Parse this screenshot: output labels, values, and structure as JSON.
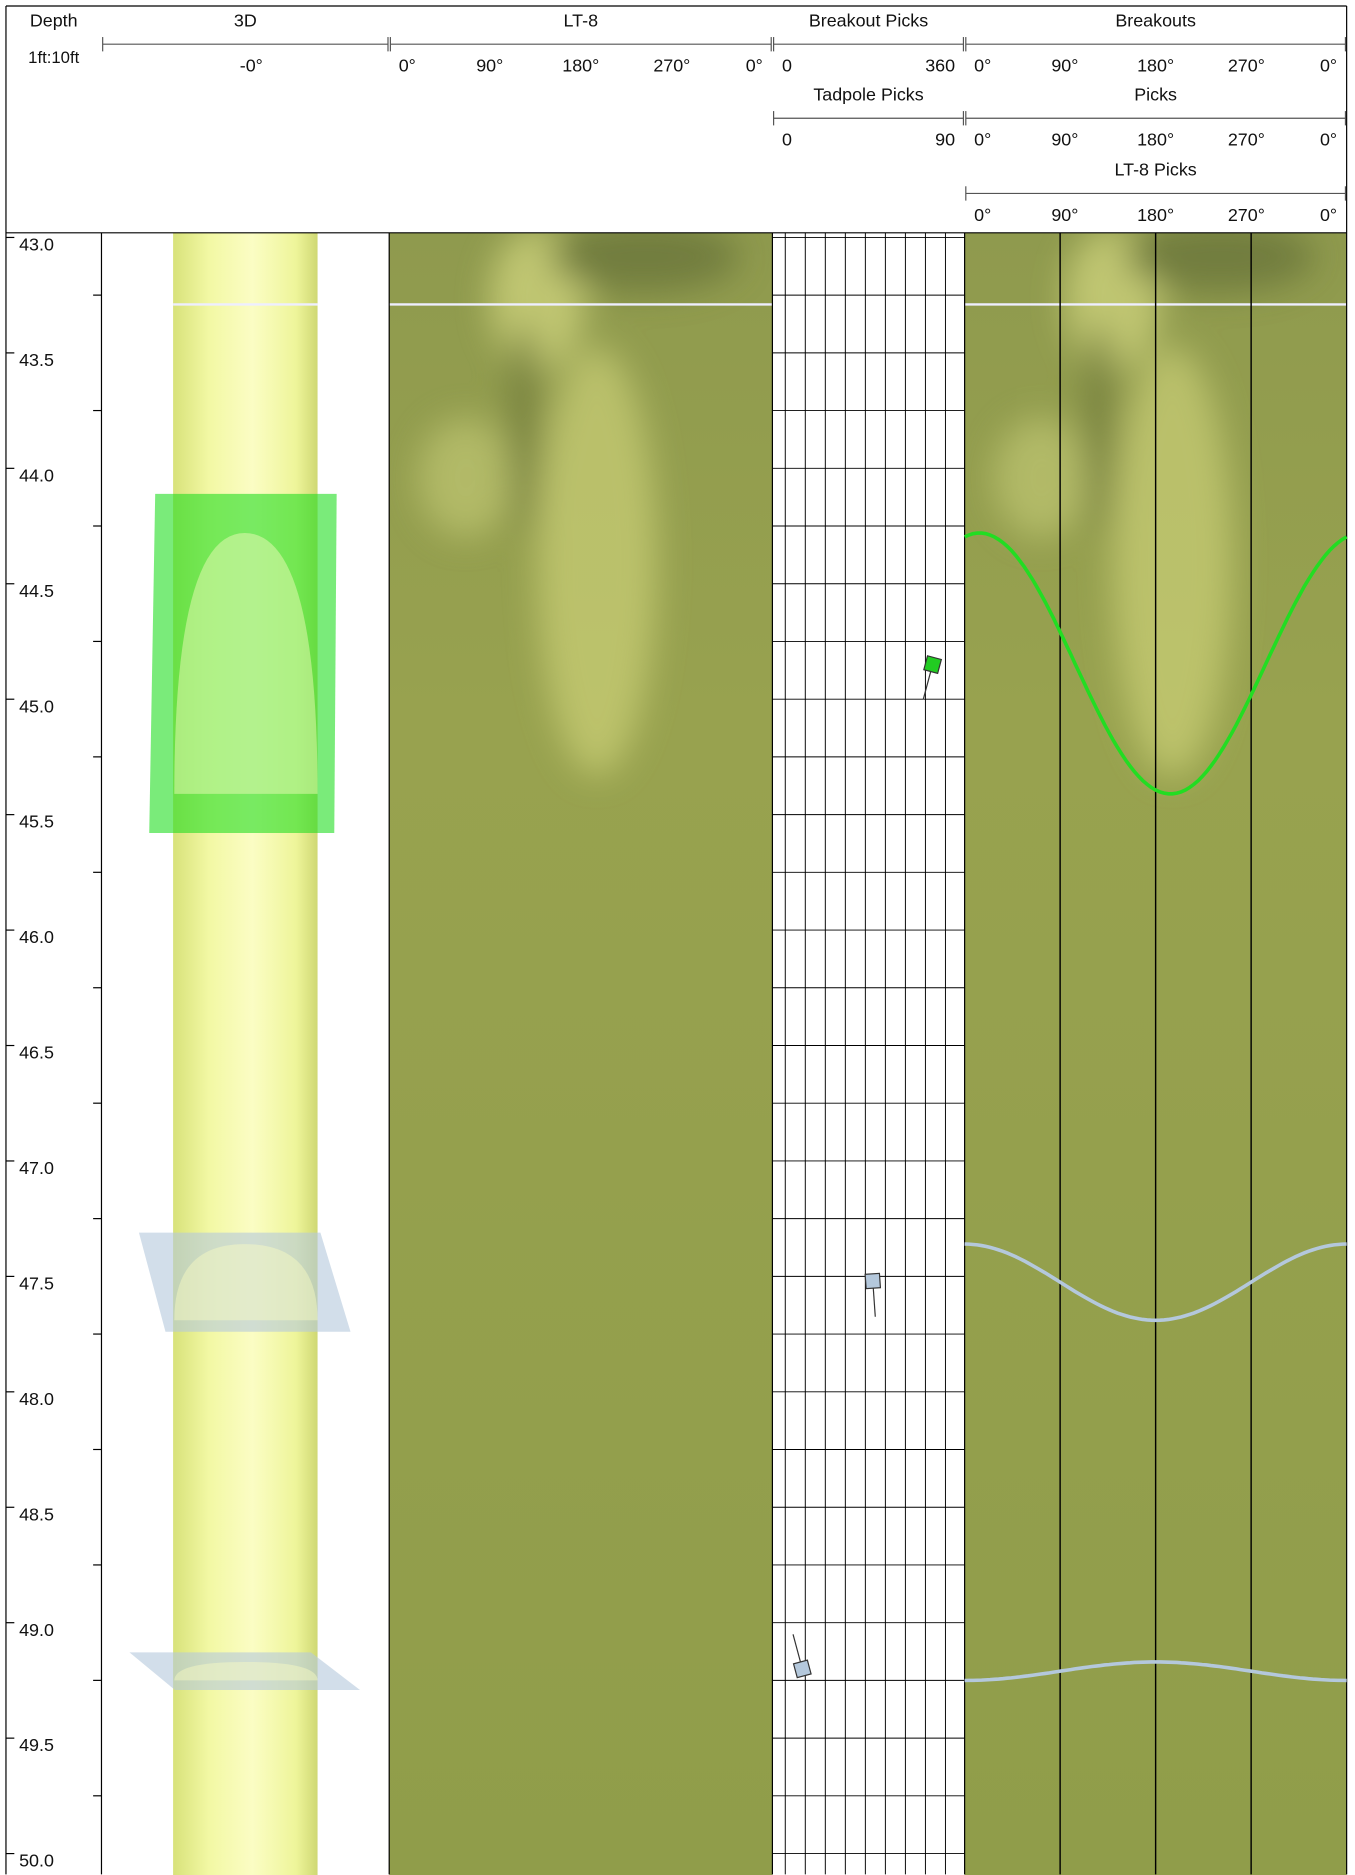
{
  "depth_track": {
    "title": "Depth",
    "scale_text": "1ft:10ft",
    "range": [
      42.98,
      50.09
    ],
    "ticks": [
      {
        "value": 43.0,
        "label": "43.0"
      },
      {
        "value": 43.5,
        "label": "43.5"
      },
      {
        "value": 44.0,
        "label": "44.0"
      },
      {
        "value": 44.5,
        "label": "44.5"
      },
      {
        "value": 45.0,
        "label": "45.0"
      },
      {
        "value": 45.5,
        "label": "45.5"
      },
      {
        "value": 46.0,
        "label": "46.0"
      },
      {
        "value": 46.5,
        "label": "46.5"
      },
      {
        "value": 47.0,
        "label": "47.0"
      },
      {
        "value": 47.5,
        "label": "47.5"
      },
      {
        "value": 48.0,
        "label": "48.0"
      },
      {
        "value": 48.5,
        "label": "48.5"
      },
      {
        "value": 49.0,
        "label": "49.0"
      },
      {
        "value": 49.5,
        "label": "49.5"
      },
      {
        "value": 50.0,
        "label": "50.0"
      }
    ]
  },
  "tracks": [
    {
      "scales": [
        {
          "title": "3D",
          "labels": [
            "-0°"
          ]
        }
      ]
    },
    {
      "scales": [
        {
          "title": "LT-8",
          "labels": [
            "0°",
            "90°",
            "180°",
            "270°",
            "0°"
          ]
        }
      ]
    },
    {
      "scales": [
        {
          "title": "Breakout Picks",
          "labels": [
            "0",
            "360"
          ]
        },
        {
          "title": "Tadpole Picks",
          "labels": [
            "0",
            "90"
          ]
        }
      ]
    },
    {
      "scales": [
        {
          "title": "Breakouts",
          "labels": [
            "0°",
            "90°",
            "180°",
            "270°",
            "0°"
          ]
        },
        {
          "title": "Picks",
          "labels": [
            "0°",
            "90°",
            "180°",
            "270°",
            "0°"
          ]
        },
        {
          "title": "LT-8 Picks",
          "labels": [
            "0°",
            "90°",
            "180°",
            "270°",
            "0°"
          ]
        }
      ]
    }
  ],
  "tadpoles": [
    {
      "depth": 44.85,
      "dip": 75,
      "azimuth": 195,
      "color": "#22cc22"
    },
    {
      "depth": 47.52,
      "dip": 47,
      "azimuth": 176,
      "color": "#b4c8dc"
    },
    {
      "depth": 49.2,
      "dip": 14,
      "azimuth": 345,
      "color": "#b4c8dc"
    }
  ],
  "sinusoids": [
    {
      "top": 44.28,
      "bottom": 45.41,
      "trough_azimuth": 194,
      "color": "#22dd22"
    },
    {
      "top": 47.36,
      "bottom": 47.69,
      "trough_azimuth": 180,
      "color": "#b4c8dc"
    },
    {
      "top": 49.17,
      "bottom": 49.25,
      "trough_azimuth": 0,
      "color": "#b4c8dc"
    }
  ]
}
